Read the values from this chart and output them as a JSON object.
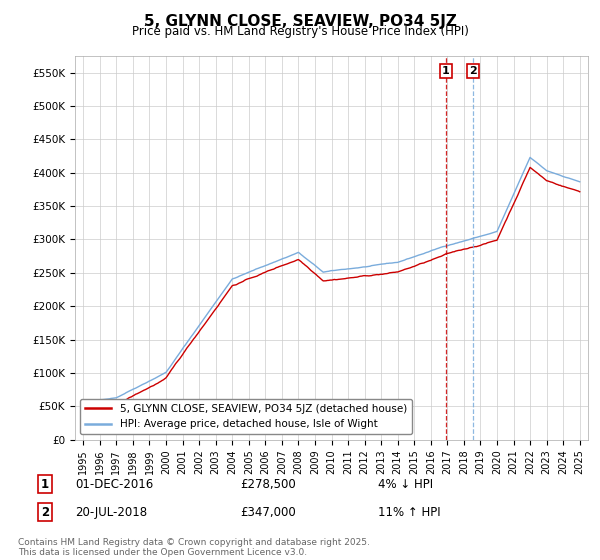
{
  "title": "5, GLYNN CLOSE, SEAVIEW, PO34 5JZ",
  "subtitle": "Price paid vs. HM Land Registry's House Price Index (HPI)",
  "ylabel_ticks": [
    "£0",
    "£50K",
    "£100K",
    "£150K",
    "£200K",
    "£250K",
    "£300K",
    "£350K",
    "£400K",
    "£450K",
    "£500K",
    "£550K"
  ],
  "ytick_values": [
    0,
    50000,
    100000,
    150000,
    200000,
    250000,
    300000,
    350000,
    400000,
    450000,
    500000,
    550000
  ],
  "ylim": [
    0,
    575000
  ],
  "xlim_start": 1994.5,
  "xlim_end": 2025.5,
  "xtick_years": [
    1995,
    1996,
    1997,
    1998,
    1999,
    2000,
    2001,
    2002,
    2003,
    2004,
    2005,
    2006,
    2007,
    2008,
    2009,
    2010,
    2011,
    2012,
    2013,
    2014,
    2015,
    2016,
    2017,
    2018,
    2019,
    2020,
    2021,
    2022,
    2023,
    2024,
    2025
  ],
  "legend_line1": "5, GLYNN CLOSE, SEAVIEW, PO34 5JZ (detached house)",
  "legend_line2": "HPI: Average price, detached house, Isle of Wight",
  "sale1_label": "1",
  "sale1_date": "01-DEC-2016",
  "sale1_price": "£278,500",
  "sale1_hpi": "4% ↓ HPI",
  "sale1_x": 2016.917,
  "sale1_y": 278500,
  "sale2_label": "2",
  "sale2_date": "20-JUL-2018",
  "sale2_price": "£347,000",
  "sale2_hpi": "11% ↑ HPI",
  "sale2_x": 2018.542,
  "sale2_y": 347000,
  "line_color_property": "#cc0000",
  "line_color_hpi": "#7aacdc",
  "vline_color": "#cc0000",
  "vline2_color": "#7aacdc",
  "footnote": "Contains HM Land Registry data © Crown copyright and database right 2025.\nThis data is licensed under the Open Government Licence v3.0.",
  "background_color": "#ffffff",
  "grid_color": "#cccccc",
  "title_fontsize": 11,
  "subtitle_fontsize": 8.5,
  "tick_fontsize": 7.5,
  "legend_fontsize": 7.5,
  "table_fontsize": 8.5,
  "footnote_fontsize": 6.5
}
